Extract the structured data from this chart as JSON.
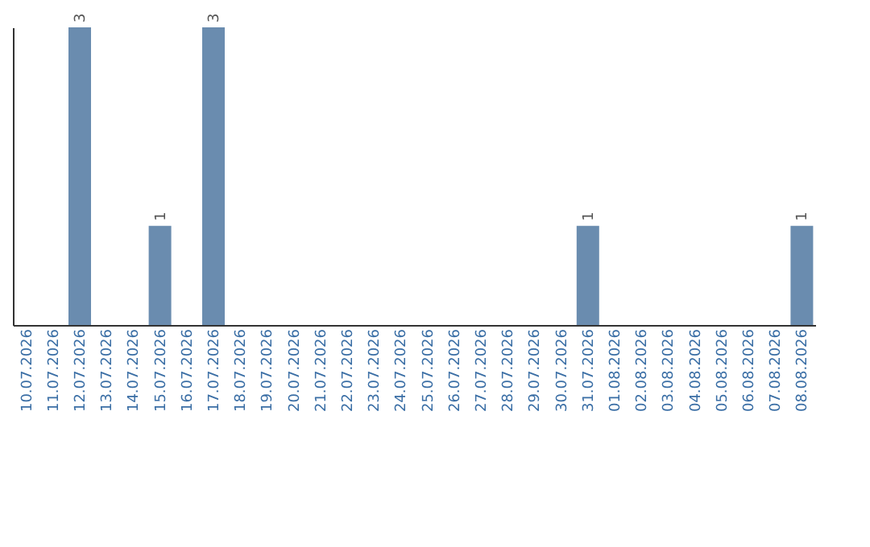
{
  "chart_data": {
    "type": "bar",
    "categories": [
      "10.07.2026",
      "11.07.2026",
      "12.07.2026",
      "13.07.2026",
      "14.07.2026",
      "15.07.2026",
      "16.07.2026",
      "17.07.2026",
      "18.07.2026",
      "19.07.2026",
      "20.07.2026",
      "21.07.2026",
      "22.07.2026",
      "23.07.2026",
      "24.07.2026",
      "25.07.2026",
      "26.07.2026",
      "27.07.2026",
      "28.07.2026",
      "29.07.2026",
      "30.07.2026",
      "31.07.2026",
      "01.08.2026",
      "02.08.2026",
      "03.08.2026",
      "04.08.2026",
      "05.08.2026",
      "06.08.2026",
      "07.08.2026",
      "08.08.2026"
    ],
    "values": [
      0,
      0,
      3,
      0,
      0,
      1,
      0,
      3,
      0,
      0,
      0,
      0,
      0,
      0,
      0,
      0,
      0,
      0,
      0,
      0,
      0,
      1,
      0,
      0,
      0,
      0,
      0,
      0,
      0,
      1
    ],
    "value_labels": [
      null,
      null,
      "3",
      null,
      null,
      "1",
      null,
      "3",
      null,
      null,
      null,
      null,
      null,
      null,
      null,
      null,
      null,
      null,
      null,
      null,
      null,
      "1",
      null,
      null,
      null,
      null,
      null,
      null,
      null,
      "1"
    ],
    "color": "#6a8caf",
    "tick_labels": "x",
    "grid": false
  }
}
